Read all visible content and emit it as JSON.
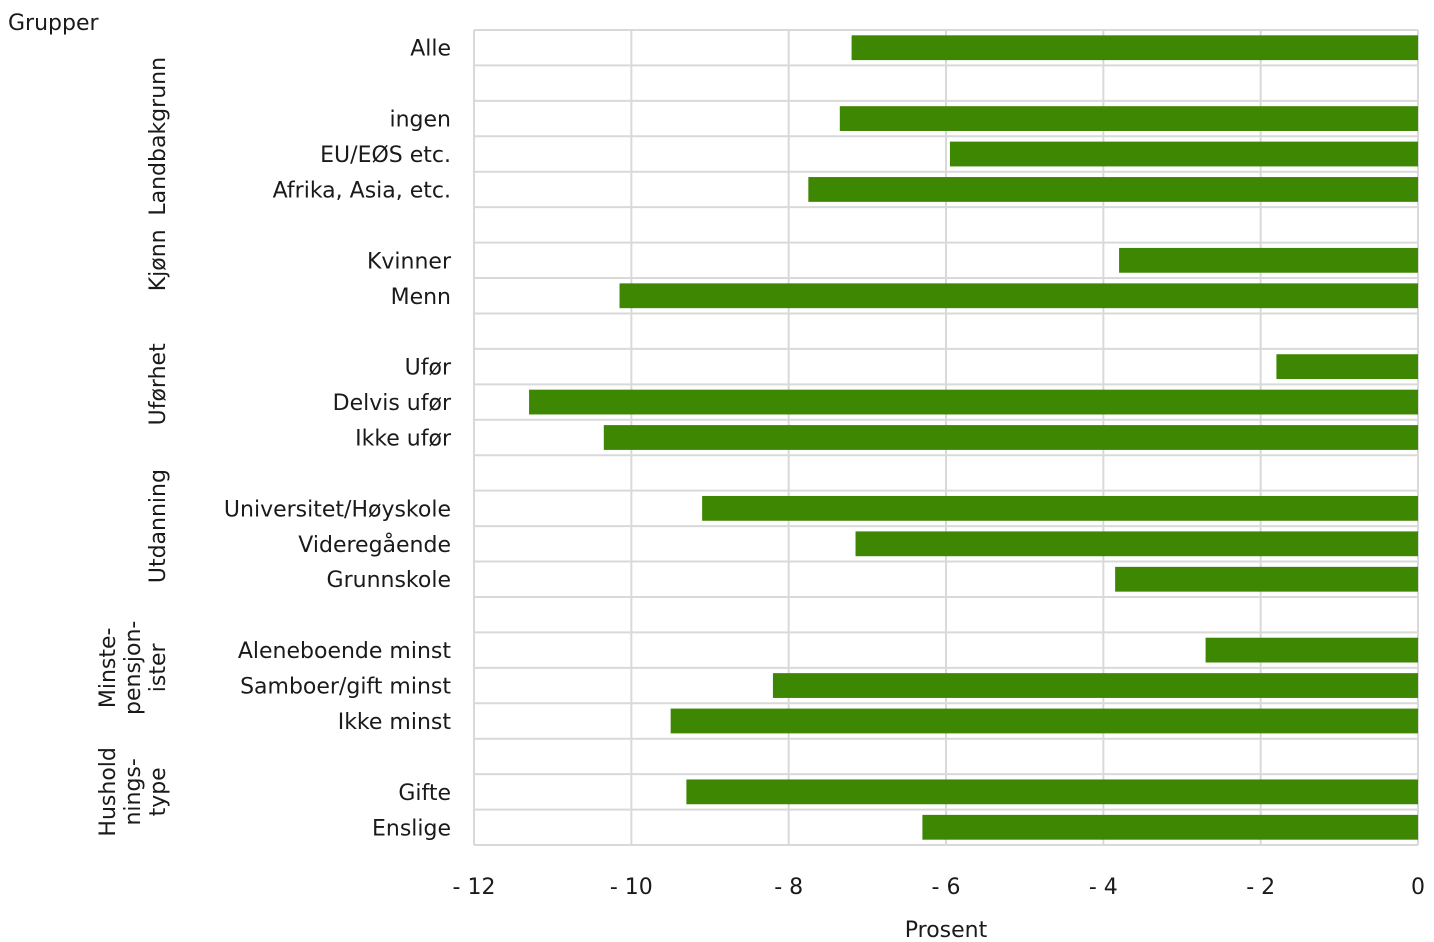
{
  "chart_data": {
    "type": "bar",
    "orientation": "horizontal",
    "title": "",
    "corner_label": "Grupper",
    "xlabel": "Prosent",
    "xlim": [
      -12,
      0
    ],
    "xticks": [
      -12,
      -10,
      -8,
      -6,
      -4,
      -2,
      0
    ],
    "xtick_labels": [
      "- 12",
      "- 10",
      "- 8",
      "- 6",
      "- 4",
      "- 2",
      "0"
    ],
    "grid": true,
    "bar_color": "#3e8703",
    "rows": [
      {
        "label": "Alle",
        "value": -7.2
      },
      {
        "label": "",
        "value": null
      },
      {
        "label": "ingen",
        "value": -7.35
      },
      {
        "label": "EU/EØS etc.",
        "value": -5.95
      },
      {
        "label": "Afrika, Asia, etc.",
        "value": -7.75
      },
      {
        "label": "",
        "value": null
      },
      {
        "label": "Kvinner",
        "value": -3.8
      },
      {
        "label": "Menn",
        "value": -10.15
      },
      {
        "label": "",
        "value": null
      },
      {
        "label": "Ufør",
        "value": -1.8
      },
      {
        "label": "Delvis ufør",
        "value": -11.3
      },
      {
        "label": "Ikke ufør",
        "value": -10.35
      },
      {
        "label": "",
        "value": null
      },
      {
        "label": "Universitet/Høyskole",
        "value": -9.1
      },
      {
        "label": "Videregående",
        "value": -7.15
      },
      {
        "label": "Grunnskole",
        "value": -3.85
      },
      {
        "label": "",
        "value": null
      },
      {
        "label": "Aleneboende minst",
        "value": -2.7
      },
      {
        "label": "Samboer/gift minst",
        "value": -8.2
      },
      {
        "label": "Ikke minst",
        "value": -9.5
      },
      {
        "label": "",
        "value": null
      },
      {
        "label": "Gifte",
        "value": -9.3
      },
      {
        "label": "Enslige",
        "value": -6.3
      }
    ],
    "groups": [
      {
        "lines": [
          "Landbakgrunn"
        ],
        "from": 1,
        "to": 5
      },
      {
        "lines": [
          "Kjønn"
        ],
        "from": 5,
        "to": 8
      },
      {
        "lines": [
          "Uførhet"
        ],
        "from": 8,
        "to": 12
      },
      {
        "lines": [
          "Utdanning"
        ],
        "from": 12,
        "to": 16
      },
      {
        "lines": [
          "Minste-",
          "pensjon-",
          "ister"
        ],
        "from": 16,
        "to": 20
      },
      {
        "lines": [
          "Hushold",
          "nings-",
          "type"
        ],
        "from": 20,
        "to": 23
      }
    ]
  }
}
